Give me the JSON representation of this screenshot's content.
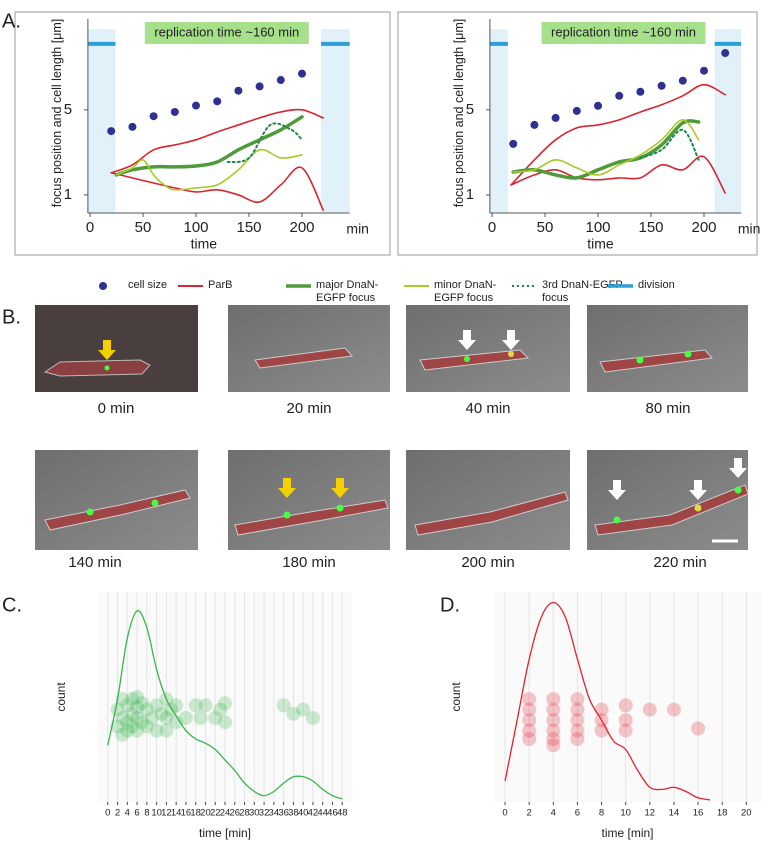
{
  "chart_data": [
    {
      "type": "line",
      "panel_label": "A.",
      "ylabel": "focus position and cell length [μm]",
      "xlabel": "time",
      "x_unit_label": "min",
      "annotation": "replication time ~160 min",
      "xlim": [
        -2,
        245
      ],
      "ylim": [
        0.15,
        8.8
      ],
      "xticks": [
        0,
        50,
        100,
        150,
        200
      ],
      "yticks": [
        1,
        5
      ],
      "division": {
        "name": "division",
        "color": "#2d9fd9",
        "spans": [
          [
            -2,
            24
          ],
          [
            218,
            245
          ]
        ],
        "level": 8.1
      },
      "series": [
        {
          "name": "cell size",
          "color": "#2e3192",
          "style": "dot",
          "x": [
            20,
            40,
            60,
            80,
            100,
            120,
            140,
            160,
            180,
            200
          ],
          "values": [
            4.0,
            4.2,
            4.7,
            4.9,
            5.2,
            5.4,
            5.9,
            6.1,
            6.4,
            6.7
          ]
        },
        {
          "name": "ParB",
          "color": "#d7262e",
          "style": "solid",
          "x": [
            20,
            40,
            60,
            80,
            100,
            120,
            140,
            160,
            180,
            200,
            220
          ],
          "values": [
            2.04,
            2.41,
            3.12,
            3.35,
            3.59,
            3.96,
            4.29,
            4.62,
            4.9,
            5.0,
            4.62
          ]
        },
        {
          "color": "#d7262e",
          "style": "solid",
          "x": [
            20,
            40,
            60,
            80,
            100,
            120,
            140,
            160,
            180,
            200,
            220
          ],
          "values": [
            2.04,
            1.8,
            1.56,
            1.33,
            1.14,
            1.24,
            1.0,
            0.67,
            1.47,
            2.27,
            0.29
          ]
        },
        {
          "name": "major DnaN-EGFP focus",
          "color": "#4f9a3a",
          "style": "bold",
          "x": [
            25,
            40,
            60,
            80,
            100,
            120,
            140,
            160,
            180,
            200
          ],
          "values": [
            1.94,
            2.18,
            2.32,
            2.32,
            2.36,
            2.55,
            3.12,
            3.59,
            4.06,
            4.67
          ]
        },
        {
          "name": "minor DnaN-EGFP focus",
          "color": "#a9c927",
          "style": "solid",
          "x": [
            25,
            40,
            50,
            60,
            70,
            80,
            100,
            120,
            140,
            160,
            180,
            200
          ],
          "values": [
            1.94,
            2.27,
            2.65,
            1.94,
            1.47,
            1.24,
            1.33,
            1.47,
            2.18,
            3.12,
            2.74,
            2.88
          ]
        },
        {
          "name": "3rd DnaN-EGFP focus",
          "color": "#1e8a4a",
          "style": "dotted",
          "x": [
            130,
            150,
            170,
            190,
            200
          ],
          "values": [
            2.55,
            2.74,
            4.29,
            4.06,
            3.59
          ]
        }
      ]
    },
    {
      "type": "line",
      "ylabel": "focus position and cell length [μm]",
      "xlabel": "time",
      "x_unit_label": "min",
      "annotation": "replication time ~160 min",
      "xlim": [
        -2,
        235
      ],
      "ylim": [
        0.15,
        8.8
      ],
      "xticks": [
        0,
        50,
        100,
        150,
        200
      ],
      "yticks": [
        1,
        5
      ],
      "division": {
        "color": "#2d9fd9",
        "spans": [
          [
            -2,
            15
          ],
          [
            210,
            235
          ]
        ],
        "level": 8.1
      },
      "series": [
        {
          "color": "#2e3192",
          "style": "dot",
          "x": [
            20,
            40,
            60,
            80,
            100,
            120,
            140,
            160,
            180,
            200,
            220
          ],
          "values": [
            3.4,
            4.29,
            4.62,
            4.95,
            5.19,
            5.66,
            5.85,
            6.13,
            6.37,
            6.84,
            7.67
          ]
        },
        {
          "color": "#d7262e",
          "style": "solid",
          "x": [
            18,
            40,
            60,
            80,
            100,
            120,
            140,
            160,
            180,
            200,
            220
          ],
          "values": [
            1.47,
            2.65,
            3.59,
            4.15,
            4.29,
            4.53,
            4.9,
            5.24,
            5.66,
            6.18,
            5.71
          ]
        },
        {
          "color": "#d7262e",
          "style": "solid",
          "x": [
            18,
            40,
            60,
            80,
            100,
            120,
            140,
            160,
            180,
            200,
            220
          ],
          "values": [
            1.47,
            1.94,
            2.18,
            1.8,
            1.71,
            1.8,
            1.8,
            2.41,
            2.18,
            2.79,
            1.09
          ]
        },
        {
          "color": "#4f9a3a",
          "style": "bold",
          "x": [
            20,
            40,
            60,
            80,
            100,
            120,
            140,
            160,
            180,
            195
          ],
          "values": [
            2.08,
            2.18,
            1.94,
            1.8,
            2.18,
            2.55,
            2.74,
            3.35,
            4.39,
            4.43
          ]
        },
        {
          "color": "#a9c927",
          "style": "solid",
          "x": [
            20,
            40,
            60,
            80,
            100,
            120,
            140,
            160,
            180,
            195
          ],
          "values": [
            2.08,
            2.18,
            2.65,
            2.27,
            1.94,
            2.41,
            2.88,
            3.59,
            4.53,
            3.59
          ]
        },
        {
          "color": "#1e8a4a",
          "style": "dotted",
          "x": [
            140,
            160,
            180,
            195
          ],
          "values": [
            2.74,
            3.12,
            4.06,
            2.65
          ]
        }
      ]
    },
    {
      "type": "density_dot",
      "panel_label": "C.",
      "ylabel": "count",
      "xlabel": "time [min]",
      "color": "#39b54a",
      "xlim": [
        -2,
        50
      ],
      "ylim": [
        0,
        1
      ],
      "xticks": [
        0,
        2,
        4,
        6,
        8,
        10,
        12,
        14,
        16,
        18,
        20,
        22,
        24,
        26,
        28,
        30,
        32,
        34,
        36,
        38,
        40,
        42,
        44,
        46,
        48
      ],
      "density": {
        "x": [
          0,
          2,
          4,
          6,
          8,
          10,
          12,
          14,
          16,
          18,
          20,
          22,
          24,
          26,
          28,
          30,
          32,
          34,
          36,
          38,
          40,
          42,
          44,
          46,
          48
        ],
        "values": [
          0.27,
          0.49,
          0.78,
          0.91,
          0.83,
          0.63,
          0.49,
          0.41,
          0.34,
          0.3,
          0.28,
          0.25,
          0.2,
          0.15,
          0.09,
          0.05,
          0.03,
          0.05,
          0.09,
          0.12,
          0.12,
          0.1,
          0.06,
          0.03,
          0.015
        ]
      },
      "points": {
        "x": [
          2,
          2,
          3,
          3,
          3,
          4,
          4,
          4,
          5,
          5,
          5,
          6,
          6,
          6,
          6,
          7,
          7,
          8,
          8,
          9,
          10,
          10,
          11,
          12,
          12,
          12,
          13,
          14,
          14,
          16,
          18,
          19,
          20,
          22,
          23,
          24,
          24,
          36,
          38,
          40,
          42
        ],
        "values": [
          0.44,
          0.36,
          0.49,
          0.4,
          0.32,
          0.46,
          0.38,
          0.34,
          0.49,
          0.42,
          0.36,
          0.5,
          0.45,
          0.4,
          0.34,
          0.47,
          0.38,
          0.44,
          0.36,
          0.4,
          0.46,
          0.34,
          0.42,
          0.49,
          0.4,
          0.34,
          0.44,
          0.46,
          0.38,
          0.4,
          0.46,
          0.4,
          0.46,
          0.4,
          0.44,
          0.47,
          0.38,
          0.46,
          0.42,
          0.44,
          0.4
        ]
      }
    },
    {
      "type": "density_dot",
      "panel_label": "D.",
      "ylabel": "count",
      "xlabel": "time [min]",
      "color": "#e0222e",
      "xlim": [
        -1,
        21.3
      ],
      "ylim": [
        0,
        1
      ],
      "xticks": [
        0,
        2,
        4,
        6,
        8,
        10,
        12,
        14,
        16,
        18,
        20
      ],
      "density": {
        "x": [
          0,
          1,
          2,
          3,
          4,
          5,
          6,
          7,
          8,
          9,
          10,
          11,
          12,
          13,
          14,
          15,
          16,
          17
        ],
        "values": [
          0.1,
          0.39,
          0.68,
          0.88,
          0.95,
          0.88,
          0.68,
          0.49,
          0.39,
          0.29,
          0.25,
          0.15,
          0.07,
          0.06,
          0.07,
          0.05,
          0.02,
          0.01
        ]
      },
      "points": {
        "x": [
          2,
          2,
          2,
          2,
          2,
          4,
          4,
          4,
          4,
          4,
          4,
          6,
          6,
          6,
          6,
          6,
          8,
          8,
          8,
          10,
          10,
          10,
          12,
          14,
          16
        ],
        "values": [
          0.49,
          0.44,
          0.39,
          0.34,
          0.3,
          0.49,
          0.44,
          0.39,
          0.34,
          0.3,
          0.27,
          0.49,
          0.44,
          0.39,
          0.34,
          0.3,
          0.44,
          0.39,
          0.34,
          0.46,
          0.39,
          0.34,
          0.44,
          0.44,
          0.35
        ]
      }
    }
  ],
  "microscopy": {
    "panel_label": "B.",
    "frames": [
      "0 min",
      "20 min",
      "40 min",
      "80 min",
      "140 min",
      "180 min",
      "200 min",
      "220 min"
    ]
  }
}
